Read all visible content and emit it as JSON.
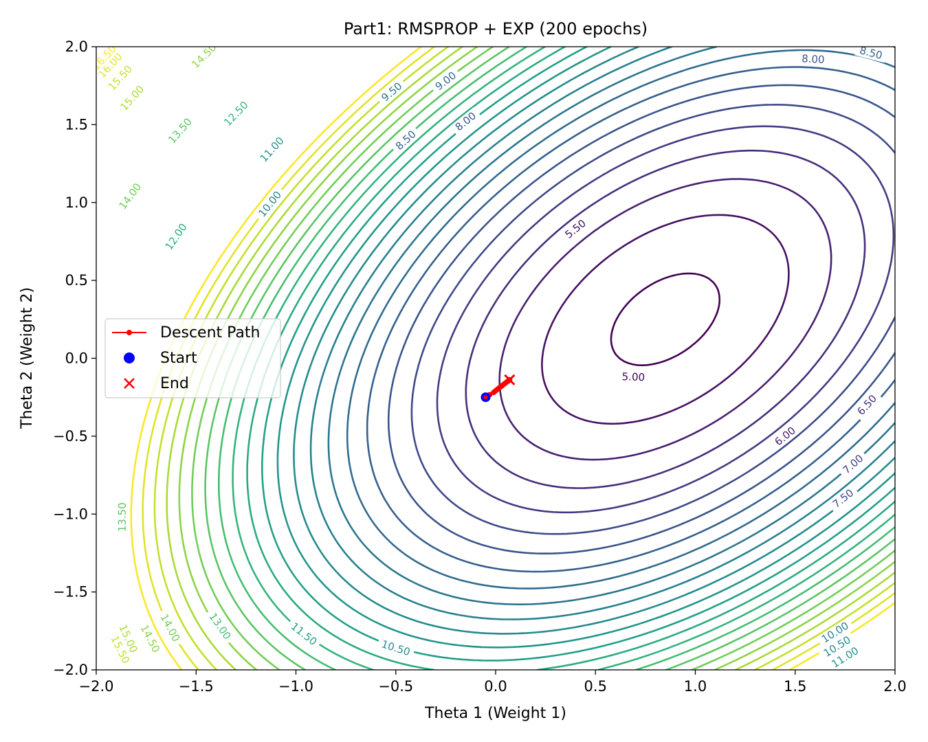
{
  "chart_data": {
    "type": "contour",
    "title": "Part1: RMSPROP + EXP (200 epochs)",
    "xlabel": "Theta 1 (Weight 1)",
    "ylabel": "Theta 2 (Weight 2)",
    "xlim": [
      -2.0,
      2.0
    ],
    "ylim": [
      -2.0,
      2.0
    ],
    "xticks": [
      -2.0,
      -1.5,
      -1.0,
      -0.5,
      0.0,
      0.5,
      1.0,
      1.5,
      2.0
    ],
    "yticks": [
      -2.0,
      -1.5,
      -1.0,
      -0.5,
      0.0,
      0.5,
      1.0,
      1.5,
      2.0
    ],
    "xtick_labels": [
      "−2.0",
      "−1.5",
      "−1.0",
      "−0.5",
      "0.0",
      "0.5",
      "1.0",
      "1.5",
      "2.0"
    ],
    "ytick_labels": [
      "−2.0",
      "−1.5",
      "−1.0",
      "−0.5",
      "0.0",
      "0.5",
      "1.0",
      "1.5",
      "2.0"
    ],
    "contour_levels": [
      5.0,
      5.5,
      6.0,
      6.5,
      7.0,
      7.5,
      8.0,
      8.5,
      9.0,
      9.5,
      10.0,
      10.5,
      11.0,
      11.5,
      12.0,
      12.5,
      13.0,
      13.5,
      14.0,
      14.5,
      15.0,
      15.5,
      16.0,
      16.5
    ],
    "contour_labels": [
      {
        "text": "5.00",
        "x": 0.69,
        "y": -0.12,
        "level": 5.0
      },
      {
        "text": "5.50",
        "x": 0.4,
        "y": 0.83,
        "level": 5.5
      },
      {
        "text": "6.00",
        "x": 1.45,
        "y": -0.5,
        "level": 6.0
      },
      {
        "text": "6.50",
        "x": 1.86,
        "y": -0.3,
        "level": 6.5
      },
      {
        "text": "7.00",
        "x": 1.79,
        "y": -0.68,
        "level": 7.0
      },
      {
        "text": "7.50",
        "x": 1.74,
        "y": -0.9,
        "level": 7.5
      },
      {
        "text": "8.00",
        "x": 1.59,
        "y": 1.92,
        "level": 8.0
      },
      {
        "text": "8.50",
        "x": 1.88,
        "y": 1.96,
        "level": 8.5
      },
      {
        "text": "8.00",
        "x": -0.15,
        "y": 1.52,
        "level": 8.0
      },
      {
        "text": "8.50",
        "x": -0.45,
        "y": 1.4,
        "level": 8.5
      },
      {
        "text": "9.00",
        "x": -0.25,
        "y": 1.78,
        "level": 9.0
      },
      {
        "text": "9.50",
        "x": -0.52,
        "y": 1.71,
        "level": 9.5
      },
      {
        "text": "10.00",
        "x": -1.13,
        "y": 0.99,
        "level": 10.0
      },
      {
        "text": "11.00",
        "x": -1.12,
        "y": 1.34,
        "level": 11.0
      },
      {
        "text": "12.50",
        "x": -1.3,
        "y": 1.57,
        "level": 12.5
      },
      {
        "text": "13.50",
        "x": -1.58,
        "y": 1.46,
        "level": 13.5
      },
      {
        "text": "12.00",
        "x": -1.6,
        "y": 0.78,
        "level": 12.0
      },
      {
        "text": "14.00",
        "x": -1.83,
        "y": 1.04,
        "level": 14.0
      },
      {
        "text": "15.00",
        "x": -1.82,
        "y": 1.67,
        "level": 15.0
      },
      {
        "text": "15.50",
        "x": -1.88,
        "y": 1.8,
        "level": 15.5
      },
      {
        "text": "16.00",
        "x": -1.93,
        "y": 1.88,
        "level": 16.0
      },
      {
        "text": "16.50",
        "x": -1.96,
        "y": 1.93,
        "level": 16.5
      },
      {
        "text": "14.50",
        "x": -1.46,
        "y": 1.94,
        "level": 14.5
      },
      {
        "text": "13.50",
        "x": -1.87,
        "y": -1.02,
        "level": 13.5
      },
      {
        "text": "13.00",
        "x": -1.38,
        "y": -1.72,
        "level": 13.0
      },
      {
        "text": "14.00",
        "x": -1.63,
        "y": -1.73,
        "level": 14.0
      },
      {
        "text": "14.50",
        "x": -1.73,
        "y": -1.8,
        "level": 14.5
      },
      {
        "text": "15.00",
        "x": -1.84,
        "y": -1.8,
        "level": 15.0
      },
      {
        "text": "15.50",
        "x": -1.88,
        "y": -1.87,
        "level": 15.5
      },
      {
        "text": "11.50",
        "x": -0.96,
        "y": -1.77,
        "level": 11.5
      },
      {
        "text": "10.50",
        "x": -0.5,
        "y": -1.86,
        "level": 10.5
      },
      {
        "text": "10.00",
        "x": 1.7,
        "y": -1.76,
        "level": 10.0
      },
      {
        "text": "10.50",
        "x": 1.71,
        "y": -1.85,
        "level": 10.5
      },
      {
        "text": "11.00",
        "x": 1.75,
        "y": -1.92,
        "level": 11.0
      }
    ],
    "colormap": "viridis",
    "series": [
      {
        "name": "Descent Path",
        "type": "line",
        "color": "#ff0000",
        "marker": "o",
        "x": [
          -0.05,
          -0.03,
          -0.01,
          0.0,
          0.01,
          0.02,
          0.03,
          0.04,
          0.05,
          0.06,
          0.065,
          0.07
        ],
        "y": [
          -0.25,
          -0.234,
          -0.219,
          -0.208,
          -0.198,
          -0.188,
          -0.178,
          -0.168,
          -0.158,
          -0.148,
          -0.143,
          -0.138
        ]
      },
      {
        "name": "Start",
        "type": "scatter",
        "color": "#0000ff",
        "marker": "o",
        "x": [
          -0.05
        ],
        "y": [
          -0.25
        ]
      },
      {
        "name": "End",
        "type": "scatter",
        "color": "#ff0000",
        "marker": "x",
        "x": [
          0.07
        ],
        "y": [
          -0.138
        ]
      }
    ],
    "legend_position": "center-left",
    "grid": false
  }
}
